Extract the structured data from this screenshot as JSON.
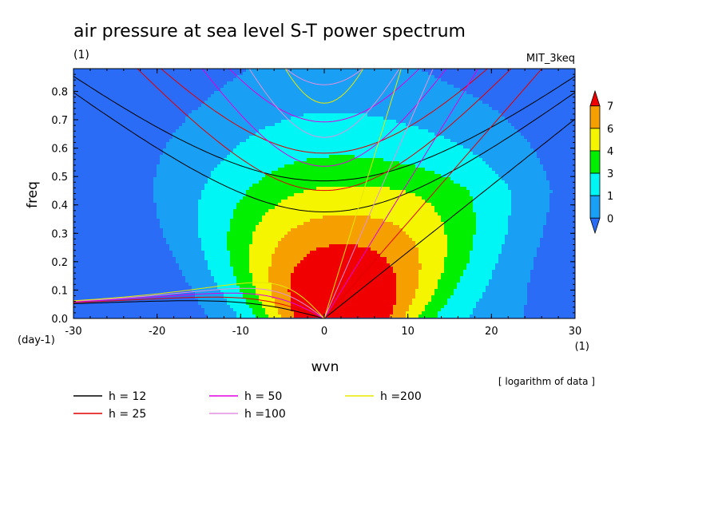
{
  "chart_data": {
    "type": "heatmap",
    "title": "air pressure at sea level S-T power spectrum",
    "subtitle_left": "(1)",
    "subtitle_right": "MIT_3keq",
    "xlabel": "wvn",
    "ylabel": "freq",
    "x_unit": "(1)",
    "y_unit": "(day-1)",
    "note": "[ logarithm of data ]",
    "xlim": [
      -30,
      30
    ],
    "ylim": [
      0,
      0.88
    ],
    "xticks": [
      "-30",
      "-20",
      "-10",
      "0",
      "10",
      "20",
      "30"
    ],
    "yticks": [
      "0.0",
      "0.1",
      "0.2",
      "0.3",
      "0.4",
      "0.5",
      "0.6",
      "0.7",
      "0.8"
    ],
    "colorbar": {
      "labels": [
        "0",
        "1",
        "3",
        "4",
        "6",
        "7"
      ],
      "colors": [
        "#2a6cf5",
        "#19a0f5",
        "#00f5f5",
        "#00f000",
        "#f5f500",
        "#f5a000",
        "#f00000"
      ]
    },
    "contour_field": {
      "peak_x": 2,
      "peak_y": 0.0,
      "max_value": 7.3
    },
    "dispersion_curves": [
      {
        "label": "h = 12",
        "h": 12,
        "color": "#000000"
      },
      {
        "label": "h = 25",
        "h": 25,
        "color": "#e00000"
      },
      {
        "label": "h = 50",
        "h": 50,
        "color": "#e000e0"
      },
      {
        "label": "h =100",
        "h": 100,
        "color": "#e090e0"
      },
      {
        "label": "h =200",
        "h": 200,
        "color": "#e8e800"
      }
    ]
  }
}
